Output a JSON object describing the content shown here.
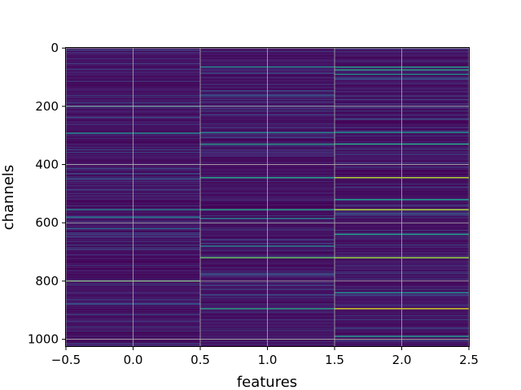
{
  "chart_data": {
    "type": "heatmap",
    "title": "",
    "xlabel": "features",
    "ylabel": "channels",
    "x": [
      0,
      1,
      2
    ],
    "xlim": [
      -0.5,
      2.5
    ],
    "ylim": [
      1023.5,
      -0.5
    ],
    "rows": 1024,
    "grid": true,
    "colormap": "viridis",
    "xticks": [
      -0.5,
      0.0,
      0.5,
      1.0,
      1.5,
      2.0,
      2.5
    ],
    "xtick_labels": [
      "−0.5",
      "0.0",
      "0.5",
      "1.0",
      "1.5",
      "2.0",
      "2.5"
    ],
    "yticks": [
      0,
      200,
      400,
      600,
      800,
      1000
    ],
    "ytick_labels": [
      "0",
      "200",
      "400",
      "600",
      "800",
      "1000"
    ],
    "highlighted_channels": [
      {
        "feature": 0,
        "channel": 200,
        "value": 0.45
      },
      {
        "feature": 0,
        "channel": 292,
        "value": 0.5
      },
      {
        "feature": 0,
        "channel": 555,
        "value": 0.45
      },
      {
        "feature": 0,
        "channel": 580,
        "value": 0.4
      },
      {
        "feature": 0,
        "channel": 800,
        "value": 0.75
      },
      {
        "feature": 0,
        "channel": 620,
        "value": 0.35
      },
      {
        "feature": 1,
        "channel": 65,
        "value": 0.5
      },
      {
        "feature": 1,
        "channel": 290,
        "value": 0.45
      },
      {
        "feature": 1,
        "channel": 330,
        "value": 0.55
      },
      {
        "feature": 1,
        "channel": 445,
        "value": 0.6
      },
      {
        "feature": 1,
        "channel": 555,
        "value": 0.6
      },
      {
        "feature": 1,
        "channel": 585,
        "value": 0.45
      },
      {
        "feature": 1,
        "channel": 680,
        "value": 0.45
      },
      {
        "feature": 1,
        "channel": 720,
        "value": 0.75
      },
      {
        "feature": 1,
        "channel": 895,
        "value": 0.6
      },
      {
        "feature": 2,
        "channel": 65,
        "value": 0.55
      },
      {
        "feature": 2,
        "channel": 75,
        "value": 0.6
      },
      {
        "feature": 2,
        "channel": 90,
        "value": 0.5
      },
      {
        "feature": 2,
        "channel": 290,
        "value": 0.5
      },
      {
        "feature": 2,
        "channel": 330,
        "value": 0.6
      },
      {
        "feature": 2,
        "channel": 445,
        "value": 0.9
      },
      {
        "feature": 2,
        "channel": 520,
        "value": 0.55
      },
      {
        "feature": 2,
        "channel": 555,
        "value": 0.9
      },
      {
        "feature": 2,
        "channel": 640,
        "value": 0.55
      },
      {
        "feature": 2,
        "channel": 720,
        "value": 0.85
      },
      {
        "feature": 2,
        "channel": 840,
        "value": 0.5
      },
      {
        "feature": 2,
        "channel": 895,
        "value": 0.95
      },
      {
        "feature": 2,
        "channel": 990,
        "value": 0.55
      }
    ]
  }
}
